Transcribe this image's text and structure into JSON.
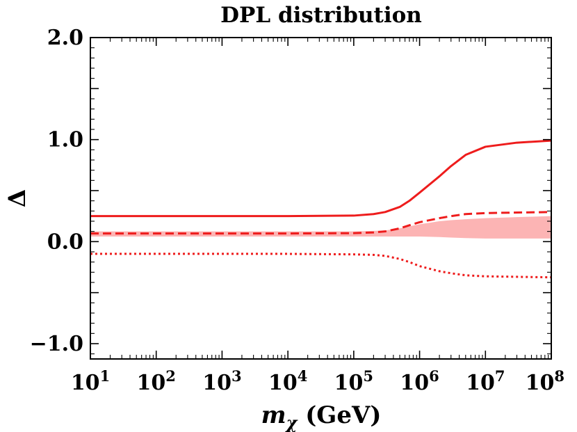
{
  "chart_data": {
    "type": "line",
    "title": "DPL distribution",
    "xlabel": "m_χ (GeV)",
    "ylabel": "Δ",
    "xscale": "log",
    "xlim": [
      10,
      100000000
    ],
    "ylim": [
      -1.15,
      2.0
    ],
    "x_ticks": [
      {
        "value": 10,
        "base": "10",
        "exp": "1"
      },
      {
        "value": 100,
        "base": "10",
        "exp": "2"
      },
      {
        "value": 1000,
        "base": "10",
        "exp": "3"
      },
      {
        "value": 10000,
        "base": "10",
        "exp": "4"
      },
      {
        "value": 100000,
        "base": "10",
        "exp": "5"
      },
      {
        "value": 1000000,
        "base": "10",
        "exp": "6"
      },
      {
        "value": 10000000,
        "base": "10",
        "exp": "7"
      },
      {
        "value": 100000000,
        "base": "10",
        "exp": "8"
      }
    ],
    "y_ticks": [
      {
        "value": 2.0,
        "label": "2.0"
      },
      {
        "value": 1.0,
        "label": "1.0"
      },
      {
        "value": 0.0,
        "label": "0.0"
      },
      {
        "value": -1.0,
        "label": "−1.0"
      }
    ],
    "grid": false,
    "x": [
      10,
      100,
      1000,
      10000,
      100000,
      200000,
      300000,
      500000,
      700000,
      1000000,
      2000000,
      3000000,
      5000000,
      10000000,
      30000000,
      100000000
    ],
    "series": [
      {
        "style": "solid",
        "color": "#ee1c1c",
        "values": [
          0.25,
          0.25,
          0.25,
          0.25,
          0.255,
          0.27,
          0.29,
          0.34,
          0.4,
          0.48,
          0.64,
          0.74,
          0.85,
          0.93,
          0.97,
          0.99
        ]
      },
      {
        "style": "dashed",
        "color": "#ee1c1c",
        "values": [
          0.08,
          0.08,
          0.08,
          0.08,
          0.083,
          0.09,
          0.1,
          0.13,
          0.16,
          0.19,
          0.23,
          0.25,
          0.27,
          0.28,
          0.285,
          0.29
        ]
      },
      {
        "style": "dotted",
        "color": "#ee1c1c",
        "values": [
          -0.12,
          -0.12,
          -0.12,
          -0.12,
          -0.125,
          -0.13,
          -0.14,
          -0.17,
          -0.2,
          -0.24,
          -0.29,
          -0.31,
          -0.33,
          -0.34,
          -0.345,
          -0.35
        ]
      }
    ],
    "band": {
      "color": "#fcb4b4",
      "lower": [
        0.05,
        0.05,
        0.05,
        0.05,
        0.05,
        0.05,
        0.05,
        0.05,
        0.05,
        0.05,
        0.045,
        0.04,
        0.035,
        0.03,
        0.03,
        0.03
      ],
      "upper": [
        0.1,
        0.1,
        0.1,
        0.1,
        0.1,
        0.105,
        0.11,
        0.13,
        0.15,
        0.17,
        0.2,
        0.21,
        0.22,
        0.23,
        0.24,
        0.25
      ]
    }
  }
}
